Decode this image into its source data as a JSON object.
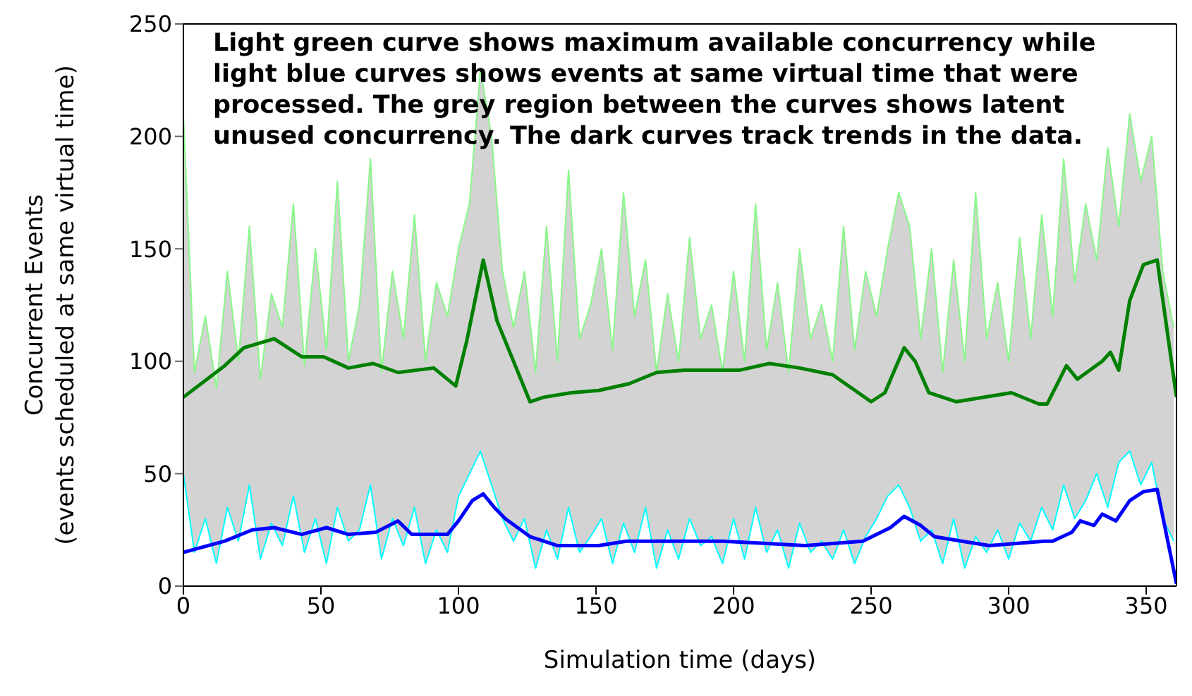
{
  "chart_data": {
    "type": "line",
    "xlabel": "Simulation time (days)",
    "ylabel": "Concurrent Events\n(events scheduled at same virtual time)",
    "annotations": [
      "Light green curve shows maximum available concurrency while\nlight blue curves shows events at same virtual time that were\nprocessed. The grey region between the curves shows latent\nunused concurrency. The dark curves track trends in the data."
    ],
    "xlim": [
      0,
      361
    ],
    "xticks": [
      0,
      50,
      100,
      150,
      200,
      250,
      300,
      350
    ],
    "ylim": [
      0,
      250
    ],
    "yticks": [
      0,
      50,
      100,
      150,
      200,
      250
    ],
    "marker": "none",
    "line_style": "solid",
    "series": [
      {
        "type": "area",
        "color": "#88f888",
        "x": [
          0,
          4,
          8,
          12,
          16,
          20,
          24,
          28,
          32,
          36,
          40,
          44,
          48,
          52,
          56,
          60,
          64,
          68,
          72,
          76,
          80,
          84,
          88,
          92,
          96,
          100,
          104,
          108,
          112,
          116,
          120,
          124,
          128,
          132,
          136,
          140,
          144,
          148,
          152,
          156,
          160,
          164,
          168,
          172,
          176,
          180,
          184,
          188,
          192,
          196,
          200,
          204,
          208,
          212,
          216,
          220,
          224,
          228,
          232,
          236,
          240,
          244,
          248,
          252,
          256,
          260,
          264,
          268,
          272,
          276,
          280,
          284,
          288,
          292,
          296,
          300,
          304,
          308,
          312,
          316,
          320,
          324,
          328,
          332,
          336,
          340,
          344,
          348,
          352,
          356,
          360
        ],
        "values": [
          210,
          95,
          120,
          88,
          140,
          100,
          160,
          92,
          130,
          115,
          170,
          98,
          150,
          105,
          180,
          100,
          125,
          190,
          95,
          140,
          110,
          165,
          100,
          135,
          120,
          150,
          170,
          230,
          200,
          140,
          115,
          140,
          95,
          160,
          100,
          185,
          110,
          125,
          150,
          105,
          175,
          120,
          145,
          95,
          130,
          100,
          155,
          110,
          125,
          95,
          140,
          100,
          170,
          105,
          135,
          95,
          150,
          110,
          125,
          100,
          160,
          105,
          140,
          120,
          150,
          175,
          160,
          110,
          150,
          95,
          145,
          100,
          175,
          110,
          135,
          100,
          155,
          110,
          165,
          120,
          190,
          135,
          170,
          145,
          195,
          160,
          210,
          180,
          200,
          140,
          115
        ]
      },
      {
        "type": "area",
        "color": "#00ffff",
        "x": [
          0,
          4,
          8,
          12,
          16,
          20,
          24,
          28,
          32,
          36,
          40,
          44,
          48,
          52,
          56,
          60,
          64,
          68,
          72,
          76,
          80,
          84,
          88,
          92,
          96,
          100,
          104,
          108,
          112,
          116,
          120,
          124,
          128,
          132,
          136,
          140,
          144,
          148,
          152,
          156,
          160,
          164,
          168,
          172,
          176,
          180,
          184,
          188,
          192,
          196,
          200,
          204,
          208,
          212,
          216,
          220,
          224,
          228,
          232,
          236,
          240,
          244,
          248,
          252,
          256,
          260,
          264,
          268,
          272,
          276,
          280,
          284,
          288,
          292,
          296,
          300,
          304,
          308,
          312,
          316,
          320,
          324,
          328,
          332,
          336,
          340,
          344,
          348,
          352,
          356,
          360
        ],
        "values": [
          50,
          15,
          30,
          10,
          35,
          20,
          45,
          12,
          28,
          18,
          40,
          15,
          30,
          10,
          35,
          20,
          25,
          45,
          12,
          30,
          18,
          35,
          10,
          25,
          15,
          40,
          50,
          60,
          45,
          30,
          20,
          30,
          8,
          25,
          12,
          35,
          15,
          22,
          30,
          10,
          28,
          15,
          35,
          8,
          25,
          12,
          30,
          18,
          22,
          10,
          30,
          12,
          35,
          15,
          25,
          8,
          28,
          15,
          20,
          12,
          25,
          10,
          22,
          30,
          40,
          45,
          35,
          20,
          25,
          10,
          30,
          8,
          22,
          15,
          25,
          12,
          28,
          20,
          35,
          25,
          45,
          30,
          38,
          50,
          35,
          55,
          60,
          45,
          55,
          30,
          20
        ]
      },
      {
        "color": "#008000",
        "x": [
          0,
          15,
          22,
          33,
          43,
          51,
          60,
          69,
          78,
          91,
          99,
          103,
          109,
          114,
          121,
          126,
          131,
          141,
          151,
          162,
          172,
          182,
          202,
          213,
          224,
          236,
          250,
          255,
          262,
          266,
          271,
          281,
          301,
          311,
          314,
          321,
          325,
          334,
          337,
          340,
          344,
          349,
          354,
          361
        ],
        "values": [
          84,
          98,
          106,
          110,
          102,
          102,
          97,
          99,
          95,
          97,
          89,
          109,
          145,
          118,
          97,
          82,
          84,
          86,
          87,
          90,
          95,
          96,
          96,
          99,
          97,
          94,
          82,
          86,
          106,
          100,
          86,
          82,
          86,
          81,
          81,
          98,
          92,
          100,
          104,
          96,
          127,
          143,
          145,
          84
        ]
      },
      {
        "color": "#0000ff",
        "x": [
          0,
          15,
          25,
          33,
          43,
          52,
          60,
          70,
          78,
          83,
          96,
          100,
          105,
          109,
          113,
          117,
          126,
          136,
          151,
          161,
          176,
          196,
          211,
          226,
          247,
          257,
          262,
          268,
          273,
          283,
          293,
          313,
          316,
          323,
          326,
          331,
          334,
          339,
          344,
          349,
          354,
          361
        ],
        "values": [
          15,
          20,
          25,
          26,
          23,
          26,
          23,
          24,
          29,
          23,
          23,
          29,
          38,
          41,
          35,
          30,
          22,
          18,
          18,
          20,
          20,
          20,
          19,
          18,
          20,
          26,
          31,
          27,
          22,
          20,
          18,
          20,
          20,
          24,
          29,
          27,
          32,
          29,
          38,
          42,
          43,
          1
        ]
      }
    ]
  }
}
